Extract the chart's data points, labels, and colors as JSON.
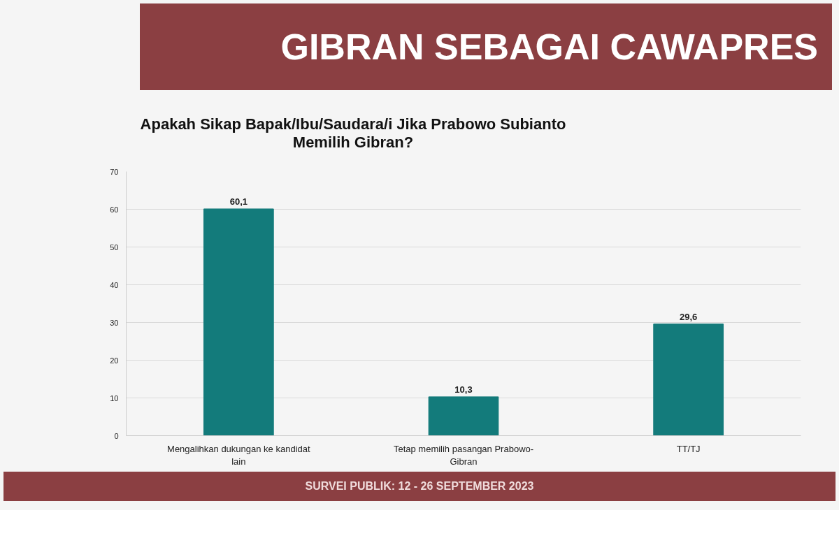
{
  "chart_data": {
    "type": "bar",
    "title": "GIBRAN SEBAGAI CAWAPRES",
    "subtitle": "Apakah Sikap Bapak/Ibu/Saudara/i Jika Prabowo Subianto Memilih Gibran?",
    "categories": [
      "Mengalihkan dukungan ke kandidat lain",
      "Tetap memilih pasangan Prabowo-Gibran",
      "TT/TJ"
    ],
    "values": [
      60.1,
      10.3,
      29.6
    ],
    "value_labels": [
      "60,1",
      "10,3",
      "29,6"
    ],
    "color": "#137b7b",
    "ylim": [
      0,
      70
    ],
    "yticks": [
      0,
      10,
      20,
      30,
      40,
      50,
      60,
      70
    ],
    "grid": "y",
    "annotations": [
      "SURVEI PUBLIK: 12 - 26 SEPTEMBER 2023"
    ]
  }
}
